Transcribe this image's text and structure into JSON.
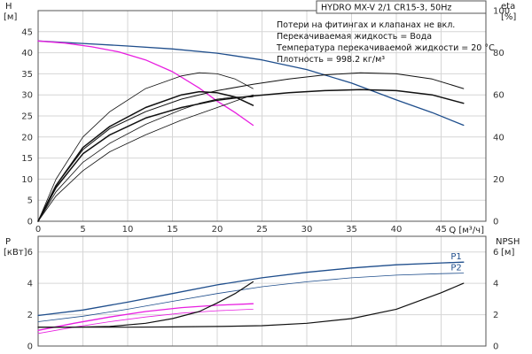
{
  "title": "HYDRO MX-V 2/1 CR15-3, 50Hz",
  "notes": [
    "Потери на фитингах и клапанах не вкл.",
    "Перекачиваемая жидкость = Вода",
    "Температура перекачиваемой жидкости = 20 °C",
    "Плотность = 998.2 кг/м³"
  ],
  "chart_data": [
    {
      "type": "line",
      "panel": "top",
      "y_left_label": "H",
      "y_left_unit": "[м]",
      "y_right_label": "eta",
      "y_right_unit": "[%]",
      "xlabel": "Q [м³/ч]",
      "xlim": [
        0,
        50
      ],
      "x_ticks": [
        0,
        5,
        10,
        15,
        20,
        25,
        30,
        35,
        40,
        45
      ],
      "ylim_left": [
        0,
        50
      ],
      "y_left_ticks": [
        0,
        5,
        10,
        15,
        20,
        25,
        30,
        35,
        40,
        45
      ],
      "ylim_right": [
        0,
        100
      ],
      "y_right_ticks": [
        0,
        20,
        40,
        60,
        80,
        100
      ],
      "grid": true,
      "series": [
        {
          "axis": "left",
          "color": "#1f4e8c",
          "width": 1.3,
          "x": [
            0,
            5,
            10,
            15,
            20,
            25,
            30,
            35,
            40,
            44,
            47.5
          ],
          "y": [
            42.8,
            42.2,
            41.6,
            40.9,
            39.9,
            38.3,
            36.0,
            32.8,
            28.8,
            25.8,
            22.8
          ]
        },
        {
          "axis": "left",
          "color": "#e81ee0",
          "width": 1.3,
          "x": [
            0,
            3,
            6,
            9,
            12,
            15,
            18,
            20,
            22,
            24
          ],
          "y": [
            42.8,
            42.3,
            41.4,
            40.2,
            38.3,
            35.5,
            31.6,
            28.5,
            25.8,
            22.8
          ]
        },
        {
          "axis": "right",
          "color": "#111111",
          "width": 1.5,
          "x": [
            0,
            2,
            5,
            8,
            12,
            16,
            20,
            24,
            28,
            32,
            36,
            40,
            44,
            47.5
          ],
          "y": [
            0,
            16,
            32,
            41,
            49,
            54,
            57.5,
            59.5,
            61,
            62,
            62.5,
            62,
            60,
            56
          ]
        },
        {
          "axis": "right",
          "color": "#111111",
          "width": 1.0,
          "x": [
            0,
            2,
            5,
            8,
            12,
            16,
            20,
            24,
            28,
            32,
            36,
            40,
            44,
            47.5
          ],
          "y": [
            0,
            17,
            34,
            44,
            52,
            58,
            62,
            65,
            67.5,
            69.5,
            70.5,
            70,
            67.5,
            63
          ]
        },
        {
          "axis": "right",
          "color": "#111111",
          "width": 1.5,
          "x": [
            0,
            2,
            5,
            8,
            12,
            16,
            18,
            20,
            22,
            24
          ],
          "y": [
            0,
            17,
            35,
            45,
            54,
            60,
            61.5,
            61,
            59,
            55
          ]
        },
        {
          "axis": "right",
          "color": "#111111",
          "width": 0.8,
          "x": [
            0,
            2,
            5,
            8,
            12,
            16,
            18,
            20,
            22,
            24
          ],
          "y": [
            0,
            14,
            28,
            37,
            46,
            53,
            56,
            58,
            59,
            59
          ]
        },
        {
          "axis": "right",
          "color": "#111111",
          "width": 0.8,
          "x": [
            0,
            2,
            5,
            8,
            12,
            16,
            18,
            20,
            22,
            24
          ],
          "y": [
            0,
            20,
            40,
            52,
            63,
            69,
            70.5,
            70,
            67.5,
            63
          ]
        },
        {
          "axis": "right",
          "color": "#111111",
          "width": 0.8,
          "x": [
            0,
            2,
            5,
            8,
            12,
            16,
            18,
            20,
            22,
            24
          ],
          "y": [
            0,
            12,
            24,
            33,
            41,
            48,
            51,
            54,
            57,
            60
          ]
        }
      ]
    },
    {
      "type": "line",
      "panel": "bottom",
      "y_left_label": "P",
      "y_left_unit": "[кВт]",
      "y_right_label": "NPSH",
      "y_right_unit": "[м]",
      "xlim": [
        0,
        50
      ],
      "x_ticks": [
        0,
        5,
        10,
        15,
        20,
        25,
        30,
        35,
        40,
        45
      ],
      "ylim_left": [
        0,
        7
      ],
      "y_left_ticks": [
        0,
        2,
        4,
        6
      ],
      "ylim_right": [
        0,
        7
      ],
      "y_right_ticks": [
        0,
        2,
        4,
        6
      ],
      "grid": true,
      "series": [
        {
          "name": "P1",
          "axis": "left",
          "color": "#1f4e8c",
          "width": 1.3,
          "x": [
            0,
            5,
            10,
            15,
            20,
            25,
            30,
            35,
            40,
            45,
            47.5
          ],
          "y": [
            1.95,
            2.3,
            2.8,
            3.35,
            3.9,
            4.35,
            4.7,
            4.98,
            5.18,
            5.3,
            5.35
          ]
        },
        {
          "name": "P2",
          "axis": "left",
          "color": "#1f4e8c",
          "width": 0.8,
          "x": [
            0,
            5,
            10,
            15,
            20,
            25,
            30,
            35,
            40,
            45,
            47.5
          ],
          "y": [
            1.55,
            1.9,
            2.35,
            2.85,
            3.35,
            3.78,
            4.1,
            4.35,
            4.52,
            4.62,
            4.65
          ]
        },
        {
          "axis": "left",
          "color": "#e81ee0",
          "width": 1.3,
          "x": [
            0,
            4,
            8,
            12,
            16,
            20,
            24
          ],
          "y": [
            1.0,
            1.45,
            1.85,
            2.2,
            2.45,
            2.6,
            2.7
          ]
        },
        {
          "axis": "left",
          "color": "#e81ee0",
          "width": 0.8,
          "x": [
            0,
            4,
            8,
            12,
            16,
            20,
            24
          ],
          "y": [
            0.8,
            1.2,
            1.55,
            1.85,
            2.1,
            2.25,
            2.35
          ]
        },
        {
          "axis": "right",
          "color": "#111111",
          "width": 1.2,
          "x": [
            0,
            5,
            10,
            15,
            20,
            25,
            30,
            35,
            40,
            45,
            47.5
          ],
          "y": [
            1.2,
            1.2,
            1.2,
            1.22,
            1.25,
            1.3,
            1.45,
            1.75,
            2.35,
            3.4,
            4.0
          ]
        },
        {
          "axis": "right",
          "color": "#111111",
          "width": 1.2,
          "x": [
            0,
            4,
            8,
            12,
            15,
            18,
            20,
            22,
            24
          ],
          "y": [
            1.2,
            1.2,
            1.25,
            1.45,
            1.75,
            2.2,
            2.75,
            3.35,
            4.1
          ]
        }
      ]
    }
  ]
}
